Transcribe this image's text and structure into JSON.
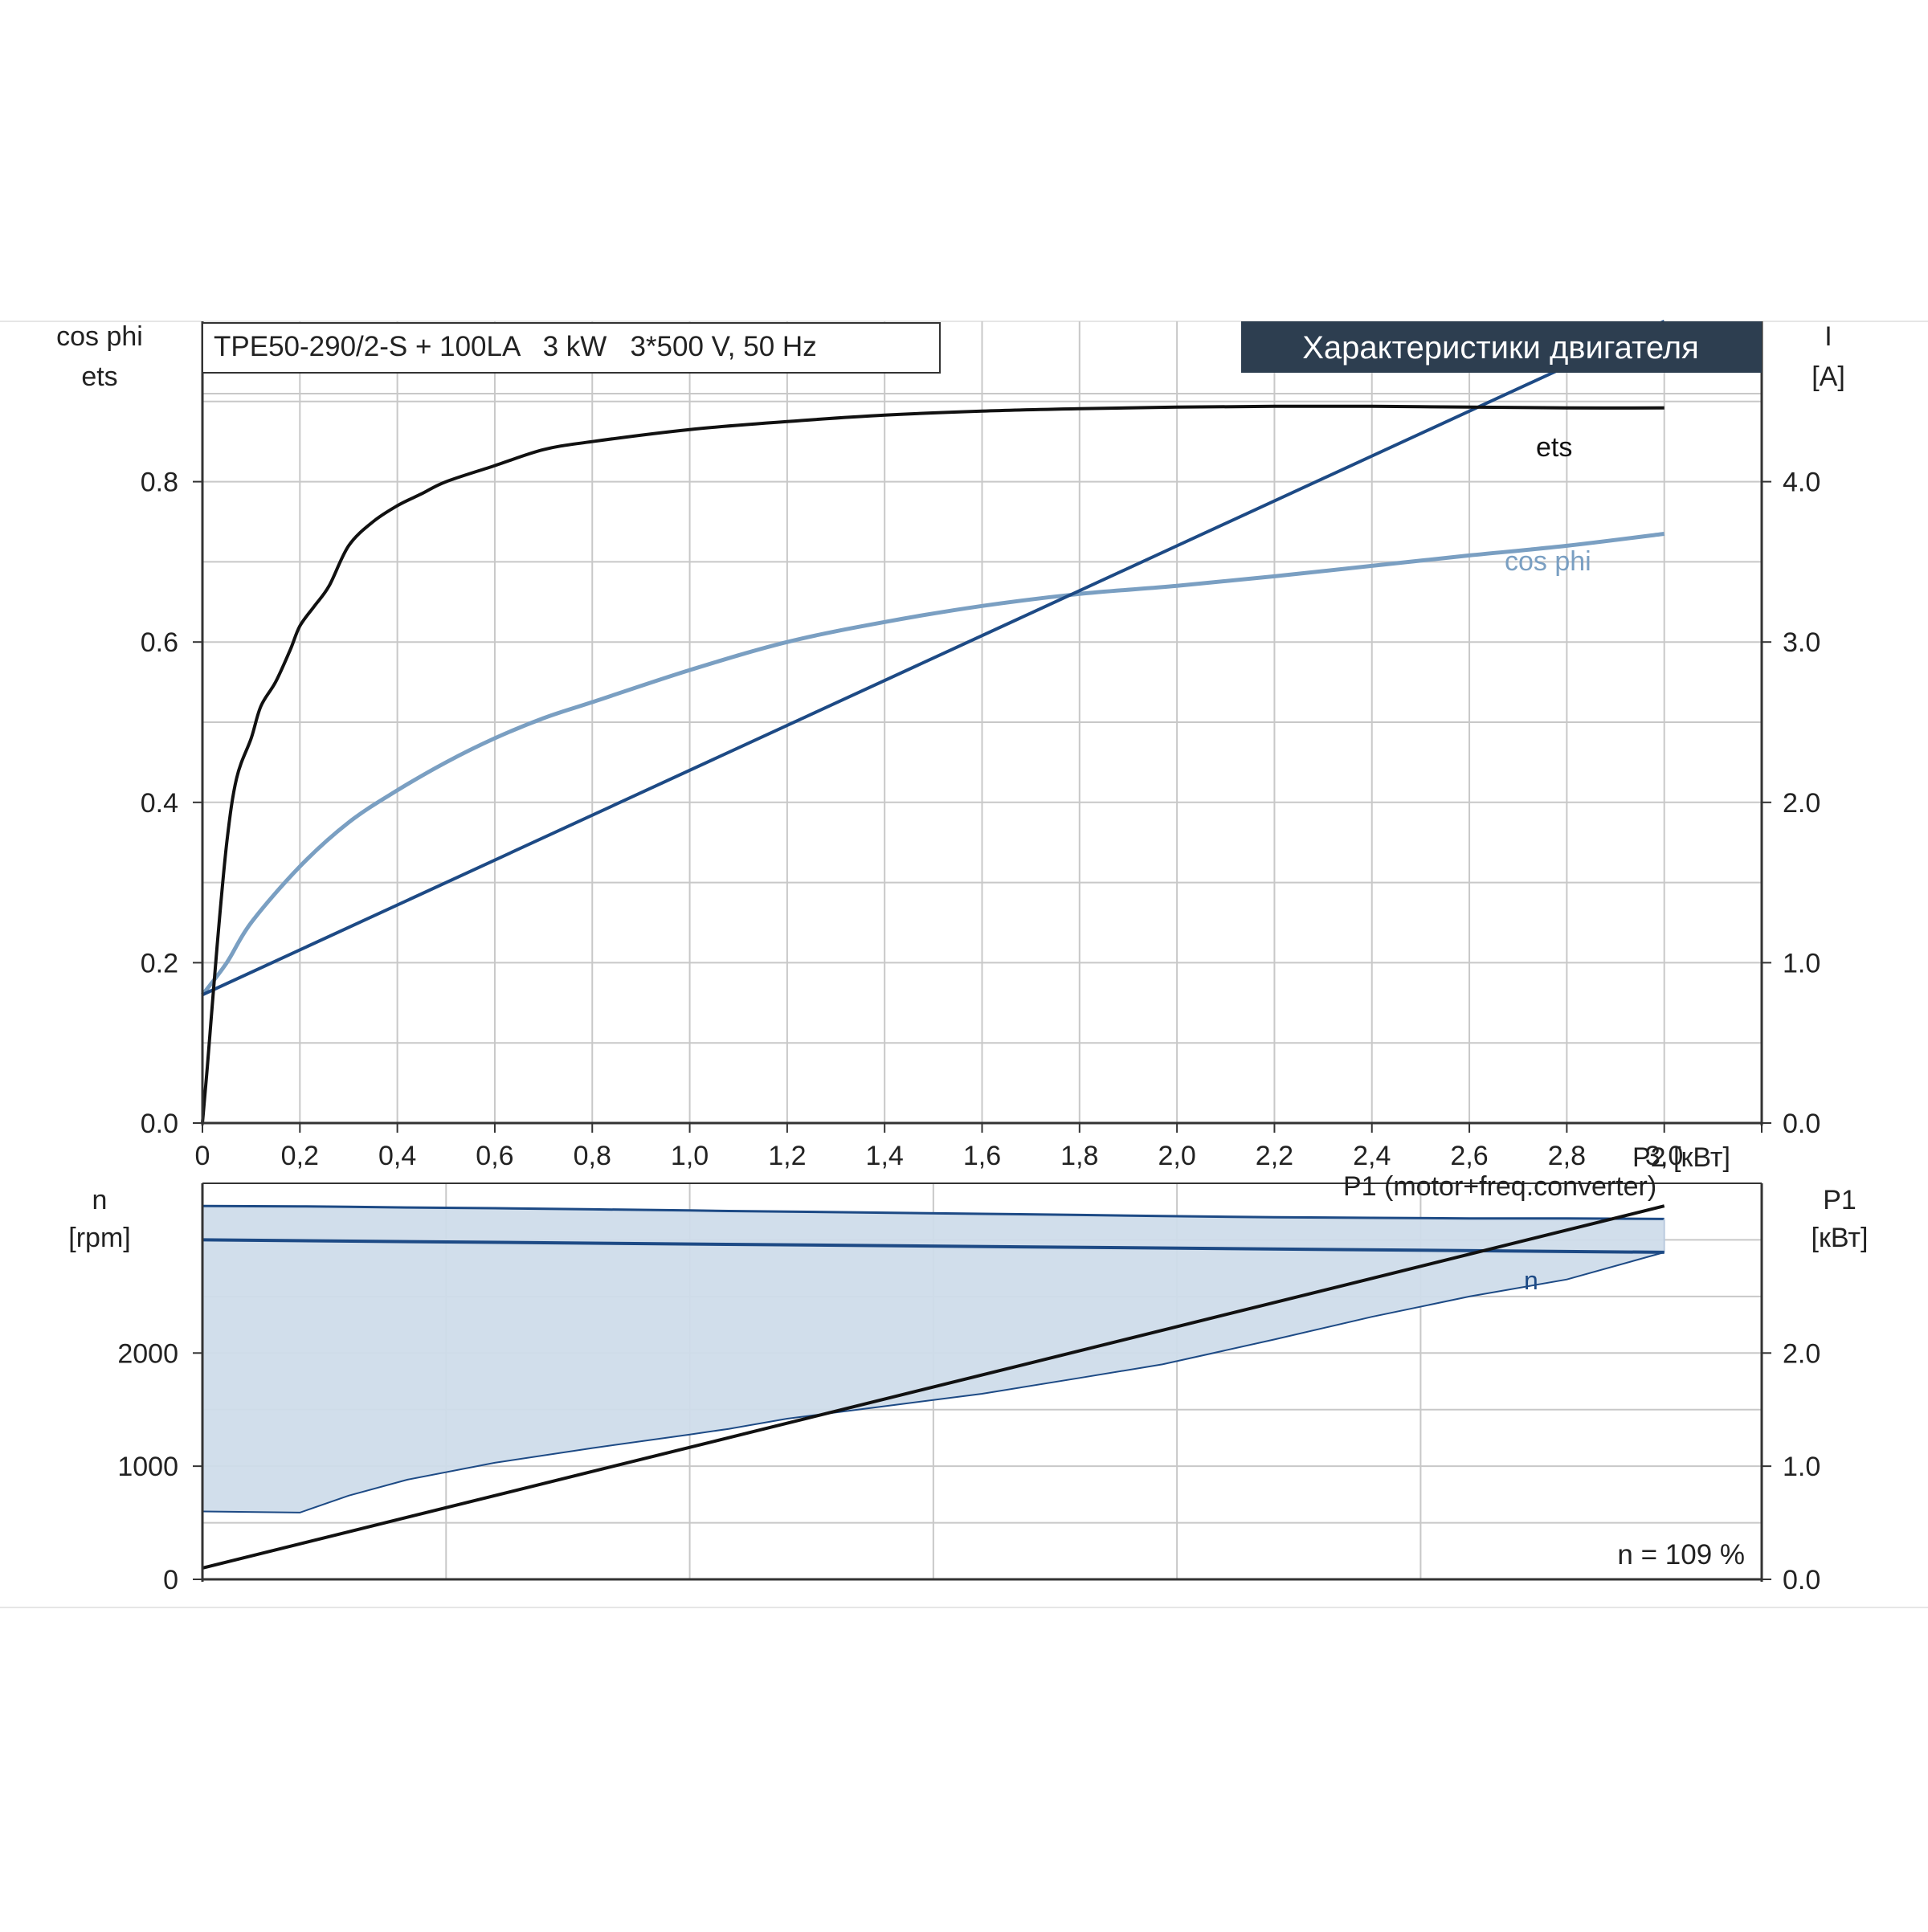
{
  "header": {
    "model_text": "TPE50-290/2-S + 100LA   3 kW   3*500 V, 50 Hz",
    "title": "Характеристики двигателя"
  },
  "colors": {
    "title_bg": "#2d3e50",
    "title_fg": "#ffffff",
    "ets": "#111111",
    "cos_phi": "#7a9fc2",
    "current": "#1d4a85",
    "speed": "#1d4a85",
    "speed_band": "#cfdcea",
    "p1": "#111111",
    "grid": "#c8c8c8",
    "axis": "#333333",
    "text": "#222222"
  },
  "chart_data": [
    {
      "type": "line",
      "name": "upper",
      "y_left_label": [
        "cos phi",
        "ets"
      ],
      "y_right_label": [
        "I",
        "[A]"
      ],
      "x_label": "P2 [кВт]",
      "xlim": [
        0,
        3.2
      ],
      "ylim_left": [
        0,
        1.0
      ],
      "ylim_right": [
        0,
        5.0
      ],
      "x_ticks": [
        "0",
        "0,2",
        "0,4",
        "0,6",
        "0,8",
        "1,0",
        "1,2",
        "1,4",
        "1,6",
        "1,8",
        "2,0",
        "2,2",
        "2,4",
        "2,6",
        "2,8",
        "3,0"
      ],
      "y_left_ticks": [
        {
          "v": 0.0,
          "label": "0.0"
        },
        {
          "v": 0.2,
          "label": "0.2"
        },
        {
          "v": 0.4,
          "label": "0.4"
        },
        {
          "v": 0.6,
          "label": "0.6"
        },
        {
          "v": 0.8,
          "label": "0.8"
        }
      ],
      "y_right_ticks": [
        {
          "v": 0.0,
          "label": "0.0"
        },
        {
          "v": 1.0,
          "label": "1.0"
        },
        {
          "v": 2.0,
          "label": "2.0"
        },
        {
          "v": 3.0,
          "label": "3.0"
        },
        {
          "v": 4.0,
          "label": "4.0"
        }
      ],
      "series": [
        {
          "name": "ets",
          "axis": "left",
          "label": "ets",
          "x": [
            0,
            0.01,
            0.03,
            0.05,
            0.07,
            0.1,
            0.12,
            0.15,
            0.18,
            0.2,
            0.23,
            0.26,
            0.3,
            0.35,
            0.4,
            0.45,
            0.5,
            0.6,
            0.7,
            0.8,
            1.0,
            1.2,
            1.4,
            1.6,
            1.8,
            2.0,
            2.2,
            2.4,
            2.6,
            2.8,
            3.0
          ],
          "y": [
            0.0,
            0.07,
            0.22,
            0.35,
            0.43,
            0.48,
            0.52,
            0.55,
            0.59,
            0.62,
            0.645,
            0.67,
            0.72,
            0.75,
            0.77,
            0.785,
            0.8,
            0.82,
            0.84,
            0.85,
            0.865,
            0.875,
            0.883,
            0.888,
            0.891,
            0.893,
            0.894,
            0.894,
            0.893,
            0.892,
            0.892
          ]
        },
        {
          "name": "cos phi",
          "axis": "left",
          "label": "cos phi",
          "x": [
            0,
            0.05,
            0.1,
            0.2,
            0.3,
            0.4,
            0.5,
            0.6,
            0.7,
            0.8,
            1.0,
            1.2,
            1.4,
            1.6,
            1.8,
            2.0,
            2.2,
            2.4,
            2.6,
            2.8,
            3.0
          ],
          "y": [
            0.16,
            0.2,
            0.25,
            0.32,
            0.375,
            0.415,
            0.45,
            0.48,
            0.505,
            0.525,
            0.565,
            0.6,
            0.625,
            0.645,
            0.66,
            0.67,
            0.682,
            0.695,
            0.708,
            0.72,
            0.735
          ]
        },
        {
          "name": "I",
          "axis": "right",
          "x": [
            0,
            3.0
          ],
          "y": [
            0.8,
            5.0
          ]
        }
      ]
    },
    {
      "type": "area",
      "name": "lower",
      "y_left_label": [
        "n",
        "[rpm]"
      ],
      "y_right_label": [
        "P1",
        "[кВт]"
      ],
      "x_label": "P1 (motor+freq.converter)",
      "xlim": [
        0,
        3.2
      ],
      "ylim_left": [
        0,
        3500
      ],
      "ylim_right": [
        0,
        3.5
      ],
      "y_left_ticks": [
        {
          "v": 0,
          "label": "0"
        },
        {
          "v": 1000,
          "label": "1000"
        },
        {
          "v": 2000,
          "label": "2000"
        }
      ],
      "y_right_ticks": [
        {
          "v": 0.0,
          "label": "0.0"
        },
        {
          "v": 1.0,
          "label": "1.0"
        },
        {
          "v": 2.0,
          "label": "2.0"
        }
      ],
      "speed_range": {
        "x": [
          0,
          0.2,
          0.3,
          0.42,
          0.6,
          0.8,
          1.0,
          1.08,
          1.2,
          1.4,
          1.6,
          1.8,
          1.97,
          2.2,
          2.4,
          2.6,
          2.8,
          3.0
        ],
        "upper": [
          3300,
          3296,
          3292,
          3286,
          3280,
          3270,
          3260,
          3255,
          3250,
          3240,
          3230,
          3220,
          3210,
          3200,
          3195,
          3190,
          3190,
          3185
        ],
        "lower": [
          600,
          590,
          740,
          880,
          1030,
          1160,
          1280,
          1330,
          1420,
          1530,
          1640,
          1780,
          1900,
          2120,
          2320,
          2500,
          2650,
          2890
        ]
      },
      "series": [
        {
          "name": "n",
          "axis": "left",
          "label": "n",
          "x": [
            0,
            3.0
          ],
          "y": [
            3000,
            2890
          ]
        },
        {
          "name": "P1",
          "axis": "right",
          "x": [
            0,
            3.0
          ],
          "y": [
            0.1,
            3.3
          ]
        }
      ],
      "annotation": "n = 109 %"
    }
  ]
}
